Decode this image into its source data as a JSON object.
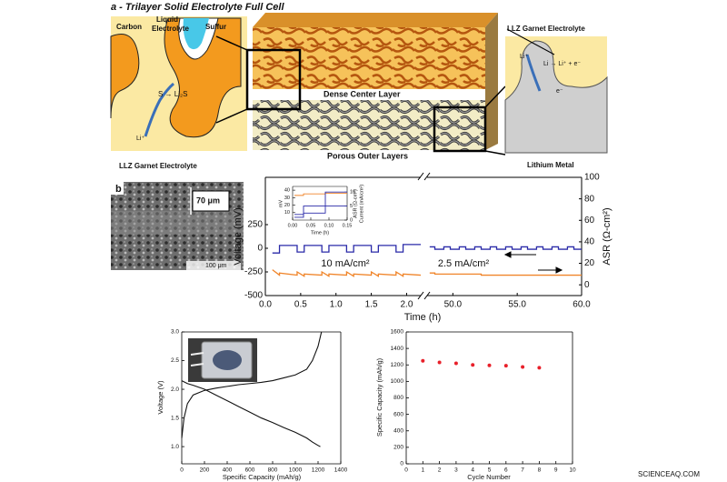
{
  "title": "a - Trilayer Solid Electrolyte Full Cell",
  "diagram": {
    "left": {
      "carbon": "Carbon",
      "liquid_1": "Liquid",
      "liquid_2": "Electrolyte",
      "sulfur": "Sulfur",
      "reaction": "S → Li₂S",
      "ion": "Li⁺",
      "electrolyte": "LLZ Garnet Electrolyte"
    },
    "center": {
      "dense": "Dense Center Layer",
      "porous": "Porous Outer Layers"
    },
    "right": {
      "electrolyte": "LLZ Garnet Electrolyte",
      "ion": "Li⁺",
      "reaction": "Li → Li⁺ + e⁻",
      "electron": "e⁻",
      "metal": "Lithium Metal"
    }
  },
  "panel_b": {
    "label": "b",
    "scale_top": "70 μm",
    "scale_bottom": "100 μm"
  },
  "watermark": "SCIENCEAQ.COM",
  "chart_data": [
    {
      "type": "line",
      "x_label": "Time (h)",
      "y_label": "Voltage (mV)",
      "annotation": "10 mA/cm²",
      "xlim": [
        0,
        2.2
      ],
      "xticks": [
        {
          "value": 0,
          "label": "0.0"
        },
        {
          "value": 0.5,
          "label": "0.5"
        },
        {
          "value": 1,
          "label": "1.0"
        },
        {
          "value": 1.5,
          "label": "1.5"
        },
        {
          "value": 2,
          "label": "2.0"
        }
      ],
      "ylim": [
        -500,
        750
      ],
      "yticks": [
        -500,
        -250,
        0,
        250
      ],
      "y2lim": [
        -10,
        100
      ],
      "x": [
        0.1,
        0.2,
        0.2,
        0.45,
        0.45,
        0.55,
        0.55,
        0.8,
        0.8,
        0.9,
        0.9,
        1.15,
        1.15,
        1.25,
        1.25,
        1.5,
        1.5,
        1.6,
        1.6,
        1.85,
        1.85,
        1.95,
        1.95,
        2.2
      ],
      "series": [
        {
          "color": "#2a2aa8",
          "values": [
            -50,
            -50,
            30,
            30,
            -40,
            -40,
            30,
            30,
            -40,
            -40,
            30,
            30,
            -40,
            -40,
            30,
            30,
            -40,
            -40,
            30,
            30,
            -40,
            -40,
            40,
            40
          ]
        },
        {
          "color": "#f0852a",
          "axis": "y2",
          "values": [
            14,
            9,
            11,
            9,
            12,
            8,
            10,
            9,
            12,
            8,
            10,
            9,
            12,
            8,
            10,
            9,
            12,
            8,
            10,
            9,
            12,
            8,
            10,
            9
          ]
        }
      ]
    },
    {
      "type": "line",
      "y2_label": "ASR (Ω-cm²)",
      "annotation": "2.5 mA/cm²",
      "xlim": [
        48,
        60
      ],
      "xticks": [
        {
          "value": 50,
          "label": "50.0"
        },
        {
          "value": 55,
          "label": "55.0"
        },
        {
          "value": 60,
          "label": "60.0"
        }
      ],
      "ylim": [
        -500,
        750
      ],
      "y2lim": [
        -10,
        100
      ],
      "y2ticks": [
        0,
        20,
        40,
        60,
        80,
        100
      ],
      "x": [
        48.2,
        48.6,
        48.6,
        49.3,
        49.3,
        49.8,
        49.8,
        50.5,
        50.5,
        51.0,
        51.0,
        51.7,
        51.7,
        52.2,
        52.2,
        52.9,
        52.9,
        53.4,
        53.4,
        54.1,
        54.1,
        54.6,
        54.6,
        55.3,
        55.3,
        55.8,
        55.8,
        56.5,
        56.5,
        57.0,
        57.0,
        57.7,
        57.7,
        58.2,
        58.2,
        58.9,
        58.9,
        59.4,
        59.4,
        60.0
      ],
      "series": [
        {
          "color": "#2a2aa8",
          "values": [
            15,
            15,
            -10,
            -10,
            15,
            15,
            -10,
            -10,
            15,
            15,
            -10,
            -10,
            15,
            15,
            -10,
            -10,
            15,
            15,
            -10,
            -10,
            15,
            15,
            -10,
            -10,
            15,
            15,
            -10,
            -10,
            15,
            15,
            -10,
            -10,
            15,
            15,
            -10,
            -10,
            15,
            15,
            -10,
            -10
          ]
        },
        {
          "color": "#f0852a",
          "axis": "y2",
          "values": [
            11,
            11,
            10,
            10,
            10,
            10,
            10,
            10,
            10,
            10,
            10,
            10,
            10,
            10,
            9,
            9,
            9,
            9,
            9,
            9,
            9,
            9,
            9,
            9,
            9,
            9,
            9,
            9,
            9,
            9,
            9,
            9,
            9,
            9,
            9,
            9,
            9,
            9,
            9,
            9
          ]
        }
      ]
    },
    {
      "type": "line",
      "x_label": "Time (h)",
      "y_label": "mV",
      "y2_label": "Current (mA/cm²)",
      "asr_label": "ASR (Ω-cm²)",
      "xlim": [
        0,
        0.15
      ],
      "xticks": [
        {
          "value": 0,
          "label": "0.00"
        },
        {
          "value": 0.05,
          "label": "0.05"
        },
        {
          "value": 0.1,
          "label": "0.10"
        },
        {
          "value": 0.15,
          "label": "0.15"
        }
      ],
      "ylim": [
        0,
        45
      ],
      "yticks": [
        10,
        20,
        30,
        40
      ],
      "y2lim": [
        0,
        12
      ],
      "y2ticks": [
        0,
        5,
        10
      ],
      "x": [
        0.005,
        0.03,
        0.03,
        0.09,
        0.09,
        0.15
      ],
      "series": [
        {
          "color": "#f0852a",
          "values": [
            33,
            33,
            35,
            35,
            36,
            36
          ]
        },
        {
          "color": "#2a2aa8",
          "axis": "y2",
          "values": [
            1,
            1,
            2.5,
            2.5,
            5,
            5
          ]
        },
        {
          "color": "#2a2aa8",
          "axis": "y2",
          "values": [
            2,
            2,
            5,
            5,
            10,
            10
          ]
        }
      ]
    },
    {
      "type": "line",
      "x_label": "Specific Capacity (mAh/g)",
      "y_label": "Voltage (V)",
      "xlim": [
        0,
        1400
      ],
      "xticks": [
        0,
        200,
        400,
        600,
        800,
        1000,
        1200,
        1400
      ],
      "ylim": [
        0.7,
        3.0
      ],
      "yticks": [
        {
          "value": 1,
          "label": "1.0"
        },
        {
          "value": 1.5,
          "label": "1.5"
        },
        {
          "value": 2,
          "label": "2.0"
        },
        {
          "value": 2.5,
          "label": "2.5"
        },
        {
          "value": 3,
          "label": "3.0"
        }
      ],
      "series": [
        {
          "color": "#111111",
          "x": [
            0,
            50,
            100,
            200,
            300,
            400,
            500,
            600,
            700,
            800,
            900,
            1000,
            1100,
            1150,
            1200,
            1220
          ],
          "values": [
            2.15,
            2.1,
            2.07,
            2.0,
            1.9,
            1.8,
            1.7,
            1.6,
            1.5,
            1.42,
            1.33,
            1.25,
            1.15,
            1.08,
            1.02,
            1.0
          ]
        },
        {
          "color": "#111111",
          "x": [
            0,
            20,
            50,
            100,
            200,
            300,
            400,
            500,
            600,
            700,
            800,
            900,
            1000,
            1100,
            1150,
            1200,
            1230
          ],
          "values": [
            1.15,
            1.5,
            1.75,
            1.9,
            1.98,
            2.02,
            2.05,
            2.08,
            2.1,
            2.12,
            2.15,
            2.2,
            2.25,
            2.35,
            2.5,
            2.75,
            3.0
          ]
        }
      ]
    },
    {
      "type": "scatter",
      "x_label": "Cycle Number",
      "y_label": "Specific Capacity (mAh/g)",
      "xlim": [
        0,
        10
      ],
      "xticks": [
        0,
        1,
        2,
        3,
        4,
        5,
        6,
        7,
        8,
        9,
        10
      ],
      "ylim": [
        0,
        1600
      ],
      "yticks": [
        0,
        200,
        400,
        600,
        800,
        1000,
        1200,
        1400,
        1600
      ],
      "x": [
        1,
        2,
        3,
        4,
        5,
        6,
        7,
        8
      ],
      "series": [
        {
          "color": "#e8202a",
          "values": [
            1250,
            1230,
            1220,
            1200,
            1195,
            1190,
            1175,
            1165
          ]
        }
      ]
    }
  ]
}
